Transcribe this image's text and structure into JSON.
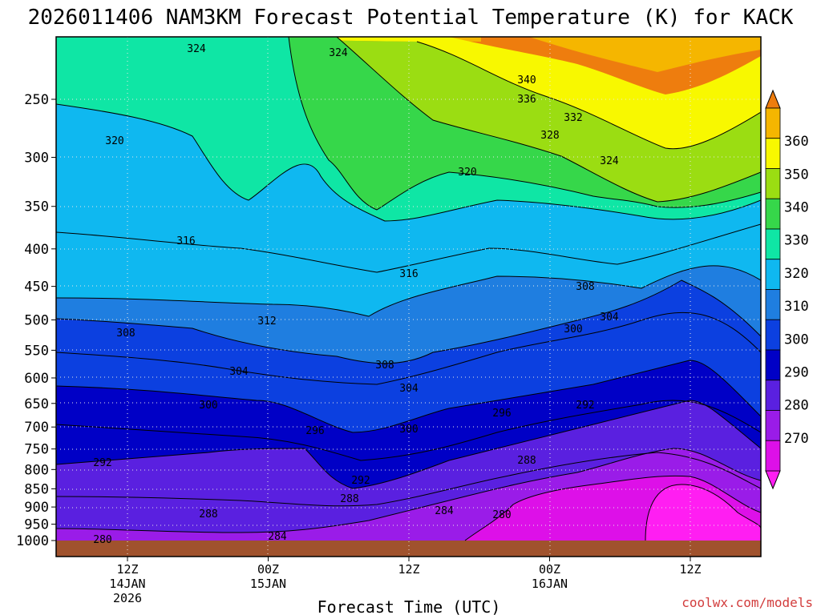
{
  "chart_data": {
    "type": "contour-fill",
    "title": "2026011406 NAM3KM Forecast Potential Temperature (K) for KACK",
    "xlabel": "Forecast Time (UTC)",
    "ylabel": "",
    "credit": "coolwx.com/models",
    "credit_color": "#d23c3c",
    "y_ticks": [
      "250",
      "300",
      "350",
      "400",
      "450",
      "500",
      "550",
      "600",
      "650",
      "700",
      "750",
      "800",
      "850",
      "900",
      "950",
      "1000"
    ],
    "x_ticks": [
      {
        "label": "12Z",
        "sub1": "14JAN",
        "sub2": "2026"
      },
      {
        "label": "00Z",
        "sub1": "15JAN",
        "sub2": ""
      },
      {
        "label": "12Z",
        "sub1": "",
        "sub2": ""
      },
      {
        "label": "00Z",
        "sub1": "16JAN",
        "sub2": ""
      },
      {
        "label": "12Z",
        "sub1": "",
        "sub2": ""
      }
    ],
    "colorbar": {
      "ticks": [
        "360",
        "350",
        "340",
        "330",
        "320",
        "310",
        "300",
        "290",
        "280",
        "270"
      ],
      "colors": [
        "#ee7d0e",
        "#f5b600",
        "#f8f800",
        "#9bdd12",
        "#36d74a",
        "#0fe6a5",
        "#0fb8f0",
        "#1f7ee0",
        "#0c40e0",
        "#0000c6",
        "#5a20e0",
        "#9a1ce8",
        "#dd10e8",
        "#ff1ef2"
      ]
    },
    "contour_labels": [
      "324",
      "324",
      "340",
      "336",
      "332",
      "328",
      "324",
      "320",
      "320",
      "316",
      "316",
      "312",
      "308",
      "308",
      "304",
      "304",
      "300",
      "300",
      "296",
      "296",
      "292",
      "292",
      "292",
      "288",
      "288",
      "288",
      "284",
      "284",
      "280",
      "280",
      "308",
      "304",
      "300"
    ],
    "surface_color": "#a0522d"
  }
}
